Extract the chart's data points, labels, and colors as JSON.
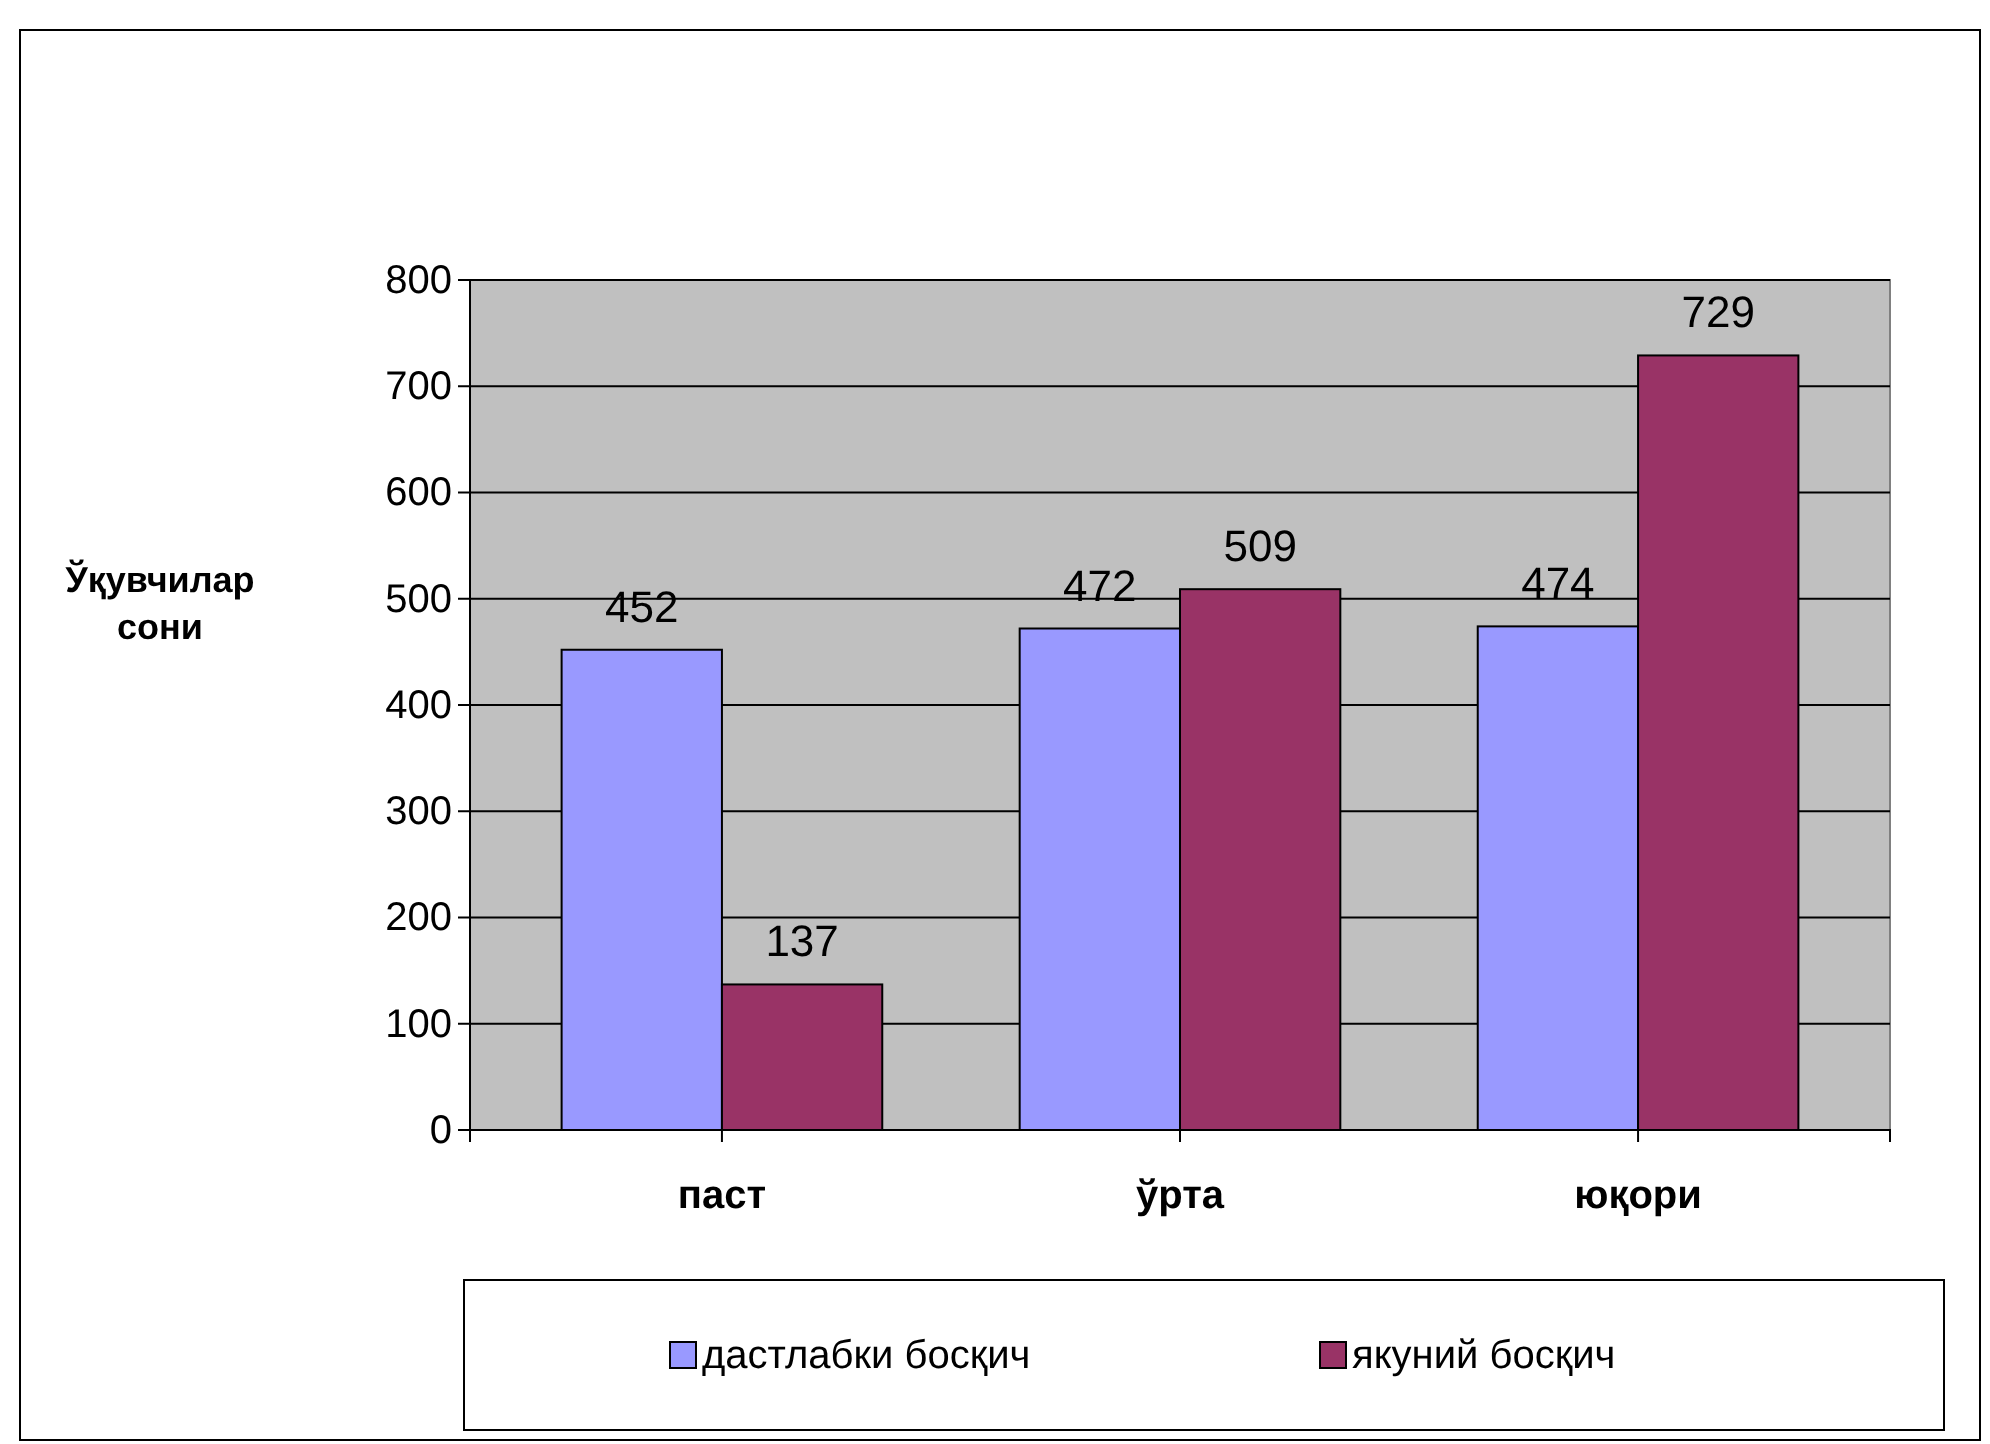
{
  "chart_data": {
    "type": "bar",
    "categories": [
      "паст",
      "ўрта",
      "юқори"
    ],
    "series": [
      {
        "name": "дастлабки босқич",
        "color": "#9999ff",
        "values": [
          452,
          472,
          474
        ]
      },
      {
        "name": "якуний босқич",
        "color": "#993366",
        "values": [
          137,
          509,
          729
        ]
      }
    ],
    "ylabel": "Ўқувчилар сони",
    "ylim": [
      0,
      800
    ],
    "yticks": [
      0,
      100,
      200,
      300,
      400,
      500,
      600,
      700,
      800
    ],
    "grid": "y",
    "legend": "bottom",
    "data_labels": true
  }
}
